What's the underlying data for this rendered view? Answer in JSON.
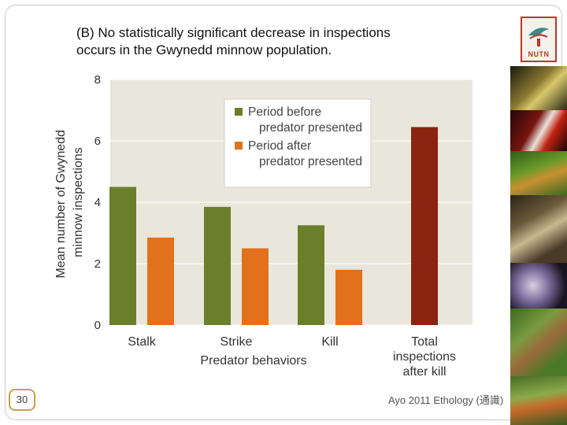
{
  "caption": {
    "line1": "(B) No statistically significant decrease in inspections",
    "line2": "occurs in the Gwynedd minnow population."
  },
  "logo": {
    "text": "NUTN"
  },
  "footer": {
    "credit": "Ayo 2011 Ethology (通識)",
    "page_number": "30"
  },
  "photos": [
    "frog-photo",
    "red-frog-photo",
    "tree-frog-photo",
    "monkey-photo",
    "octopus-photo",
    "lizard-photo",
    "insects-photo"
  ],
  "colors": {
    "before": "#6b7f2a",
    "after": "#e2711d",
    "total": "#8a2410",
    "plot_bg": "#e9e7dc"
  },
  "chart_data": {
    "type": "bar",
    "ylabel_lines": [
      "Mean number of Gwynedd",
      "minnow inspections"
    ],
    "xlabel": "Predator behaviors",
    "ylim": [
      0,
      8
    ],
    "yticks": [
      0,
      2,
      4,
      6,
      8
    ],
    "categories": [
      {
        "lines": [
          "Stalk"
        ]
      },
      {
        "lines": [
          "Strike"
        ]
      },
      {
        "lines": [
          "Kill"
        ]
      },
      {
        "lines": [
          "Total",
          "inspections",
          "after kill"
        ]
      }
    ],
    "series": [
      {
        "name_lines": [
          "Period before",
          "predator presented"
        ],
        "values": [
          4.5,
          3.85,
          3.25,
          null
        ]
      },
      {
        "name_lines": [
          "Period after",
          "predator presented"
        ],
        "values": [
          2.85,
          2.5,
          1.8,
          null
        ]
      },
      {
        "name_lines": [
          "Total inspections after kill"
        ],
        "values": [
          null,
          null,
          null,
          6.45
        ]
      }
    ],
    "legend": "top-center"
  }
}
